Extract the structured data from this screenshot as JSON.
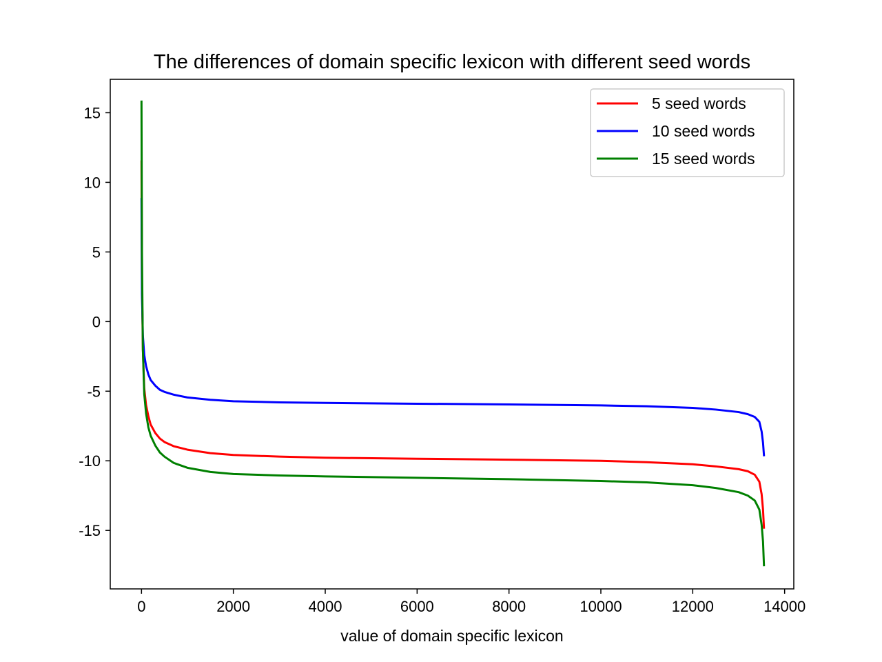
{
  "chart_data": {
    "type": "line",
    "title": "The differences of domain specific lexicon with different seed words",
    "xlabel": "value of domain specific lexicon",
    "ylabel": "",
    "xlim": [
      -680,
      14200
    ],
    "ylim": [
      -19.2,
      17.4
    ],
    "xticks": [
      0,
      2000,
      4000,
      6000,
      8000,
      10000,
      12000,
      14000
    ],
    "xtick_labels": [
      "0",
      "2000",
      "4000",
      "6000",
      "8000",
      "10000",
      "12000",
      "14000"
    ],
    "yticks": [
      15,
      10,
      5,
      0,
      -5,
      -10,
      -15
    ],
    "ytick_labels": [
      "15",
      "10",
      "5",
      "0",
      "-5",
      "-10",
      "-15"
    ],
    "grid": false,
    "legend": {
      "position": "upper-right"
    },
    "series": [
      {
        "name": "5 seed words",
        "color": "#ff0000",
        "x": [
          0,
          10,
          30,
          60,
          100,
          150,
          200,
          300,
          400,
          500,
          700,
          1000,
          1500,
          2000,
          3000,
          4000,
          6000,
          8000,
          10000,
          11000,
          12000,
          12500,
          13000,
          13200,
          13350,
          13450,
          13500,
          13530,
          13550
        ],
        "y": [
          11.5,
          3.0,
          -2.0,
          -4.8,
          -6.0,
          -6.8,
          -7.4,
          -8.0,
          -8.4,
          -8.65,
          -8.95,
          -9.2,
          -9.45,
          -9.58,
          -9.7,
          -9.78,
          -9.85,
          -9.92,
          -10.0,
          -10.1,
          -10.25,
          -10.4,
          -10.6,
          -10.75,
          -11.0,
          -11.5,
          -12.4,
          -13.5,
          -14.8
        ]
      },
      {
        "name": "10 seed words",
        "color": "#0000ff",
        "x": [
          0,
          10,
          30,
          60,
          100,
          150,
          200,
          300,
          400,
          500,
          700,
          1000,
          1500,
          2000,
          3000,
          4000,
          6000,
          8000,
          10000,
          11000,
          12000,
          12500,
          13000,
          13200,
          13350,
          13450,
          13500,
          13530,
          13550
        ],
        "y": [
          8.8,
          2.0,
          -1.0,
          -2.4,
          -3.2,
          -3.8,
          -4.2,
          -4.6,
          -4.9,
          -5.05,
          -5.25,
          -5.45,
          -5.62,
          -5.72,
          -5.8,
          -5.84,
          -5.9,
          -5.95,
          -6.02,
          -6.08,
          -6.2,
          -6.32,
          -6.5,
          -6.65,
          -6.85,
          -7.2,
          -7.9,
          -8.7,
          -9.6
        ]
      },
      {
        "name": "15 seed words",
        "color": "#008000",
        "x": [
          0,
          10,
          30,
          60,
          100,
          150,
          200,
          300,
          400,
          500,
          700,
          1000,
          1500,
          2000,
          3000,
          4000,
          6000,
          8000,
          10000,
          11000,
          12000,
          12500,
          13000,
          13200,
          13350,
          13450,
          13500,
          13530,
          13550
        ],
        "y": [
          15.8,
          5.0,
          -2.0,
          -5.2,
          -6.6,
          -7.6,
          -8.2,
          -8.9,
          -9.4,
          -9.7,
          -10.15,
          -10.5,
          -10.8,
          -10.95,
          -11.05,
          -11.12,
          -11.22,
          -11.32,
          -11.45,
          -11.55,
          -11.75,
          -11.95,
          -12.25,
          -12.5,
          -12.85,
          -13.5,
          -14.6,
          -15.8,
          -17.5
        ]
      }
    ]
  }
}
